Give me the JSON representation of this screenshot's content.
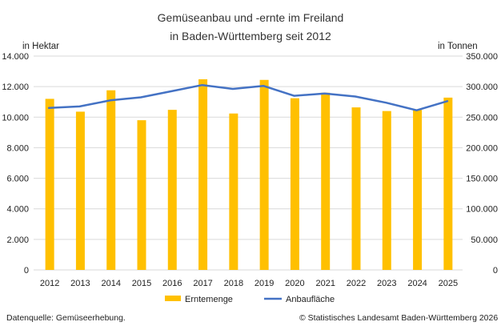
{
  "chart_data": {
    "type": "bar+line",
    "title_line1": "Gemüseanbau und -ernte im Freiland",
    "title_line2": "in Baden-Württemberg seit 2012",
    "left_axis_label": "in Hektar",
    "right_axis_label": "in Tonnen",
    "categories": [
      "2012",
      "2013",
      "2014",
      "2015",
      "2016",
      "2017",
      "2018",
      "2019",
      "2020",
      "2021",
      "2022",
      "2023",
      "2024",
      "2025"
    ],
    "left_ticks": [
      "0",
      "2.000",
      "4.000",
      "6.000",
      "8.000",
      "10.000",
      "12.000",
      "14.000"
    ],
    "right_ticks": [
      "0",
      "50.000",
      "100.000",
      "150.000",
      "200.000",
      "250.000",
      "300.000",
      "350.000"
    ],
    "left_ylim": [
      0,
      14000
    ],
    "right_ylim": [
      0,
      350000
    ],
    "series": [
      {
        "name": "Erntemenge",
        "kind": "bar",
        "axis": "right",
        "color": "#FFC000",
        "values": [
          280000,
          259000,
          294000,
          245000,
          262000,
          312000,
          256000,
          311000,
          281000,
          290000,
          266000,
          260000,
          262000,
          282000
        ]
      },
      {
        "name": "Anbaufläche",
        "kind": "line",
        "axis": "left",
        "color": "#4472C4",
        "values": [
          10600,
          10700,
          11100,
          11300,
          11700,
          12100,
          11850,
          12050,
          11400,
          11550,
          11350,
          10950,
          10450,
          11050
        ]
      }
    ],
    "legend_position": "bottom"
  },
  "footer": {
    "source": "Datenquelle: Gemüseerhebung.",
    "copyright": "© Statistisches Landesamt Baden-Württemberg 2026"
  }
}
